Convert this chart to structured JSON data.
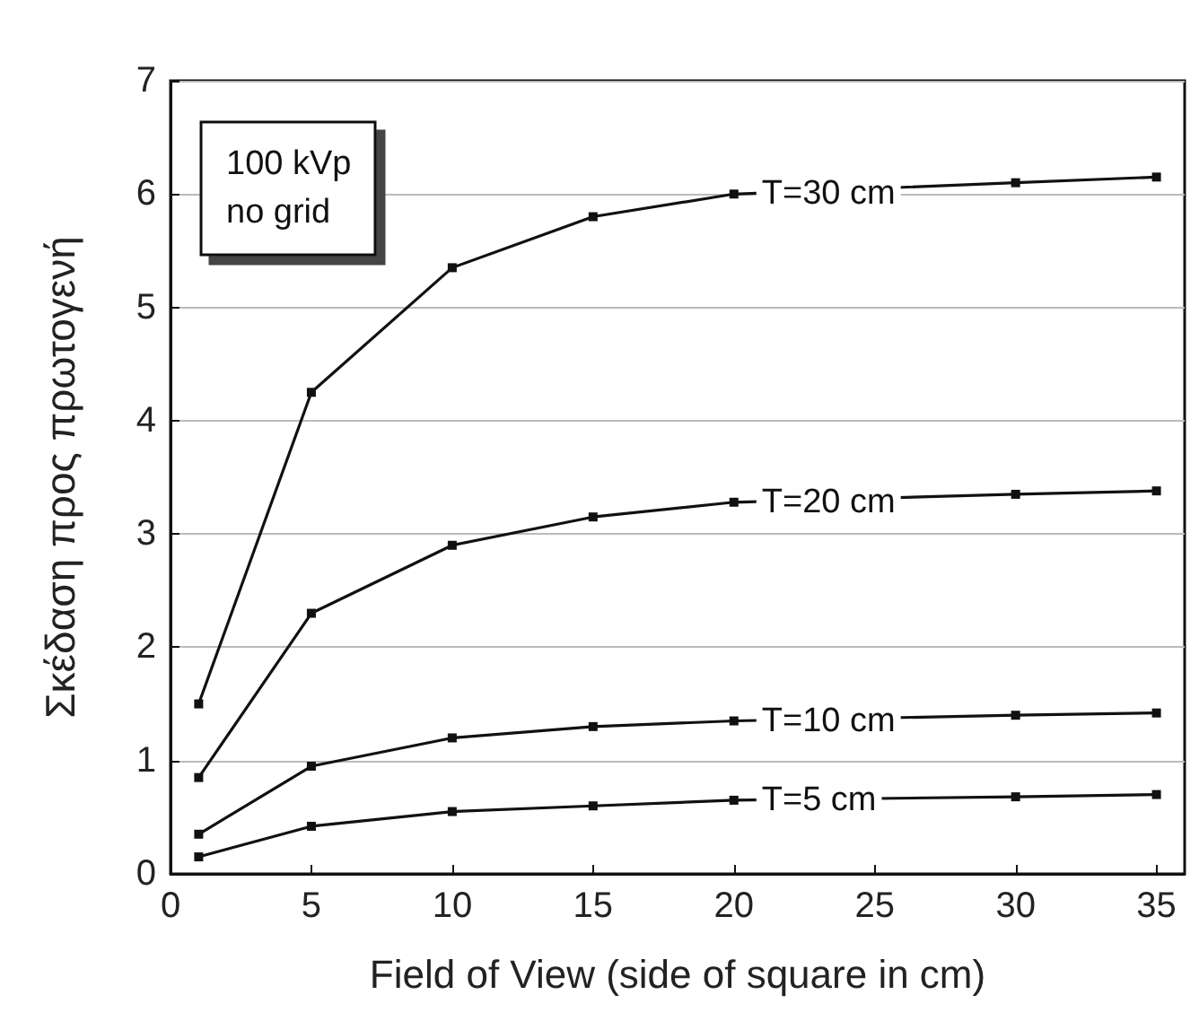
{
  "chart_data": {
    "type": "line",
    "xlabel": "Field of View (side of square in cm)",
    "ylabel": "Σκέδαση προς πρωτογενή",
    "annotations": [
      "100 kVp\nno grid"
    ],
    "x": [
      1,
      5,
      10,
      15,
      20,
      30,
      35
    ],
    "series": [
      {
        "name": "T=30 cm",
        "color": "#111111",
        "values": [
          1.5,
          4.25,
          5.35,
          5.8,
          6.0,
          6.1,
          6.15
        ]
      },
      {
        "name": "T=20 cm",
        "color": "#111111",
        "values": [
          0.85,
          2.3,
          2.9,
          3.15,
          3.28,
          3.35,
          3.38
        ]
      },
      {
        "name": "T=10 cm",
        "color": "#111111",
        "values": [
          0.35,
          0.95,
          1.2,
          1.3,
          1.35,
          1.4,
          1.42
        ]
      },
      {
        "name": "T=5 cm",
        "color": "#111111",
        "values": [
          0.15,
          0.42,
          0.55,
          0.6,
          0.65,
          0.68,
          0.7
        ]
      }
    ],
    "xlim": [
      0,
      36
    ],
    "xticks": [
      0,
      5,
      10,
      15,
      20,
      25,
      30,
      35
    ],
    "ylim": [
      0,
      7
    ],
    "yticks": [
      0,
      1,
      2,
      3,
      4,
      5,
      6,
      7
    ],
    "grid": "y",
    "marker": "square",
    "line_style": "solid",
    "legend": false
  }
}
